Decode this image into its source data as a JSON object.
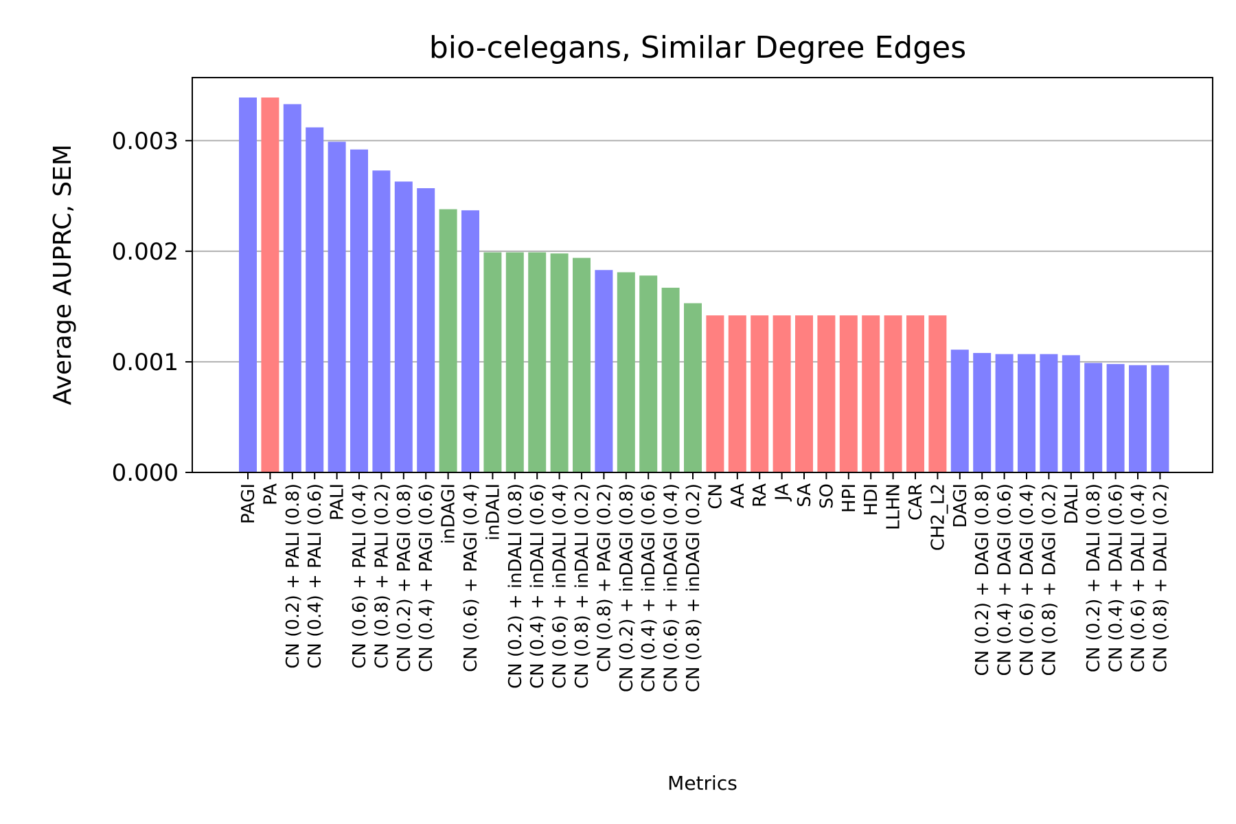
{
  "chart_data": {
    "type": "bar",
    "title": "bio-celegans, Similar Degree Edges",
    "xlabel": "Metrics",
    "ylabel": "Average AUPRC, SEM",
    "ylim": [
      0,
      0.00357
    ],
    "yticks": [
      "0.000",
      "0.001",
      "0.002",
      "0.003"
    ],
    "ytick_values": [
      0,
      0.001,
      0.002,
      0.003
    ],
    "grid": "y",
    "colors": {
      "blue": "#8080ff",
      "red": "#ff8080",
      "green": "#80c080"
    },
    "categories": [
      "PAGI",
      "PA",
      "CN (0.2) + PALI (0.8)",
      "CN (0.4) + PALI (0.6)",
      "PALI",
      "CN (0.6) + PALI (0.4)",
      "CN (0.8) + PALI (0.2)",
      "CN (0.2) + PAGI (0.8)",
      "CN (0.4) + PAGI (0.6)",
      "inDAGI",
      "CN (0.6) + PAGI (0.4)",
      "inDALI",
      "CN (0.2) + inDALI (0.8)",
      "CN (0.4) + inDALI (0.6)",
      "CN (0.6) + inDALI (0.4)",
      "CN (0.8) + inDALI (0.2)",
      "CN (0.8) + PAGI (0.2)",
      "CN (0.2) + inDAGI (0.8)",
      "CN (0.4) + inDAGI (0.6)",
      "CN (0.6) + inDAGI (0.4)",
      "CN (0.8) + inDAGI (0.2)",
      "CN",
      "AA",
      "RA",
      "JA",
      "SA",
      "SO",
      "HPI",
      "HDI",
      "LLHN",
      "CAR",
      "CH2_L2",
      "DAGI",
      "CN (0.2) + DAGI (0.8)",
      "CN (0.4) + DAGI (0.6)",
      "CN (0.6) + DAGI (0.4)",
      "CN (0.8) + DAGI (0.2)",
      "DALI",
      "CN (0.2) + DALI (0.8)",
      "CN (0.4) + DALI (0.6)",
      "CN (0.6) + DALI (0.4)",
      "CN (0.8) + DALI (0.2)"
    ],
    "values": [
      0.00339,
      0.00339,
      0.00333,
      0.00312,
      0.00299,
      0.00292,
      0.00273,
      0.00263,
      0.00257,
      0.00238,
      0.00237,
      0.00199,
      0.00199,
      0.00199,
      0.00198,
      0.00194,
      0.00183,
      0.00181,
      0.00178,
      0.00167,
      0.00153,
      0.00142,
      0.00142,
      0.00142,
      0.00142,
      0.00142,
      0.00142,
      0.00142,
      0.00142,
      0.00142,
      0.00142,
      0.00142,
      0.00111,
      0.00108,
      0.00107,
      0.00107,
      0.00107,
      0.00106,
      0.00099,
      0.00098,
      0.00097,
      0.00097
    ],
    "bar_colors": [
      "blue",
      "red",
      "blue",
      "blue",
      "blue",
      "blue",
      "blue",
      "blue",
      "blue",
      "green",
      "blue",
      "green",
      "green",
      "green",
      "green",
      "green",
      "blue",
      "green",
      "green",
      "green",
      "green",
      "red",
      "red",
      "red",
      "red",
      "red",
      "red",
      "red",
      "red",
      "red",
      "red",
      "red",
      "blue",
      "blue",
      "blue",
      "blue",
      "blue",
      "blue",
      "blue",
      "blue",
      "blue",
      "blue"
    ]
  }
}
